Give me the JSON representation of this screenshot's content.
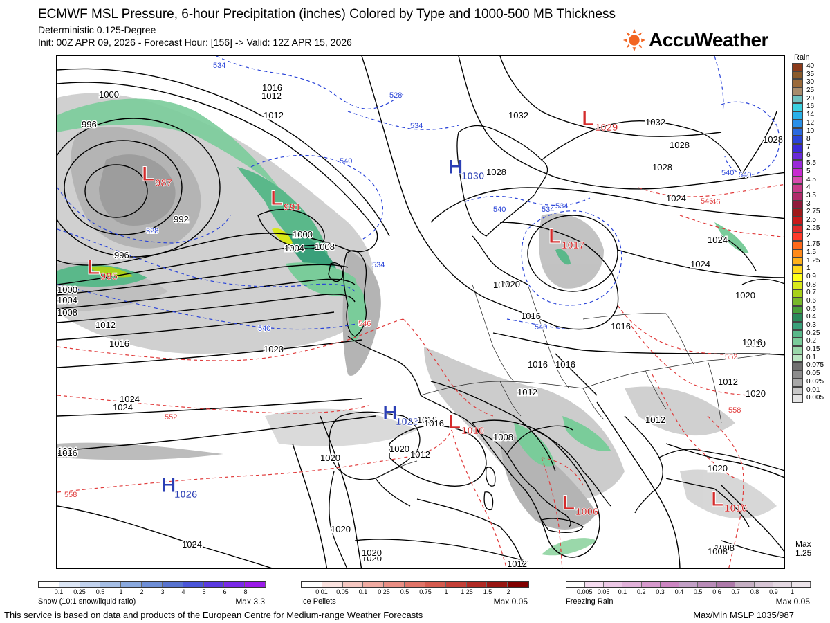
{
  "header": {
    "title": "ECMWF MSL Pressure, 6-hour Precipitation (inches) Colored by Type and 1000-500 MB Thickness",
    "subtitle": "Deterministic 0.125-Degree",
    "init_line": "Init: 00Z APR 09, 2026 - Forecast Hour: [156] -> Valid: 12Z APR 15, 2026"
  },
  "logo": {
    "text": "AccuWeather",
    "icon": "sun-icon",
    "color": "#f26522"
  },
  "map": {
    "pressure_centers": [
      {
        "type": "L",
        "value": "987",
        "color": "#d42b2b"
      },
      {
        "type": "L",
        "value": "991",
        "color": "#d42b2b"
      },
      {
        "type": "L",
        "value": "995",
        "color": "#d42b2b"
      },
      {
        "type": "L",
        "value": "1029",
        "color": "#d42b2b"
      },
      {
        "type": "L",
        "value": "1017",
        "color": "#d42b2b"
      },
      {
        "type": "L",
        "value": "1010",
        "color": "#d42b2b"
      },
      {
        "type": "L",
        "value": "1006",
        "color": "#d42b2b"
      },
      {
        "type": "L",
        "value": "1010",
        "color": "#d42b2b"
      },
      {
        "type": "H",
        "value": "1030",
        "color": "#2b3fb5"
      },
      {
        "type": "H",
        "value": "1023",
        "color": "#2b3fb5"
      },
      {
        "type": "H",
        "value": "1026",
        "color": "#2b3fb5"
      }
    ],
    "isobar_labels": [
      "1000",
      "996",
      "1012",
      "1016",
      "992",
      "1000",
      "1004",
      "1008",
      "996",
      "1000",
      "1004",
      "1008",
      "1012",
      "1016",
      "1020",
      "1024",
      "1024",
      "1020",
      "1016",
      "1012",
      "1020",
      "1024",
      "1016",
      "1016",
      "1016",
      "1012",
      "1016",
      "1020",
      "1020",
      "1024",
      "1028",
      "1032",
      "1032",
      "1028",
      "1020",
      "1012",
      "1008",
      "1020",
      "1028",
      "1020",
      "1016",
      "1020",
      "1016",
      "1012",
      "1012",
      "1008",
      "1016",
      "1012",
      "1008",
      "1020",
      "1028",
      "1024",
      "1024",
      "1020",
      "1020",
      "1024"
    ],
    "thickness_labels": [
      "534",
      "528",
      "534",
      "540",
      "528",
      "534",
      "540",
      "546",
      "540",
      "540",
      "534",
      "546",
      "540",
      "552",
      "552",
      "558",
      "558",
      "546",
      "534",
      "540"
    ]
  },
  "rain_scale": {
    "title": "Rain",
    "levels": [
      "40",
      "35",
      "30",
      "25",
      "20",
      "16",
      "14",
      "12",
      "10",
      "8",
      "7",
      "6",
      "5.5",
      "5",
      "4.5",
      "4",
      "3.5",
      "3",
      "2.75",
      "2.5",
      "2.25",
      "2",
      "1.75",
      "1.5",
      "1.25",
      "1",
      "0.9",
      "0.8",
      "0.7",
      "0.6",
      "0.5",
      "0.4",
      "0.3",
      "0.25",
      "0.2",
      "0.15",
      "0.1",
      "0.075",
      "0.05",
      "0.025",
      "0.01",
      "0.005"
    ],
    "colors": [
      "#8b3a1a",
      "#8a5a2a",
      "#9a6a3a",
      "#a88c6c",
      "#6fc2c2",
      "#3ad0e0",
      "#2ab0e8",
      "#2a90e8",
      "#2a6ae0",
      "#2a44d8",
      "#3a2ad8",
      "#6a2ad8",
      "#9a2ad8",
      "#c82ad0",
      "#d84ab0",
      "#c83a8a",
      "#b02a6a",
      "#901a3a",
      "#a01a1a",
      "#c81a1a",
      "#e02a2a",
      "#ff3a2a",
      "#ff6a1a",
      "#ff8a1a",
      "#ffb01a",
      "#ffd81a",
      "#ffff1a",
      "#d8e81a",
      "#a8d01a",
      "#78b82a",
      "#48a03a",
      "#2a8a5a",
      "#3aa07a",
      "#5ab88a",
      "#7acc9a",
      "#9ad8aa",
      "#bae6c2",
      "#707070",
      "#8c8c8c",
      "#a8a8a8",
      "#c8c8c8",
      "#e4e4e4"
    ],
    "max_label": "Max",
    "max_value": "1.25"
  },
  "legends": {
    "snow": {
      "ticks": [
        "0.1",
        "0.25",
        "0.5",
        "1",
        "2",
        "3",
        "4",
        "5",
        "6",
        "8"
      ],
      "name": "Snow (10:1 snow/liquid ratio)",
      "max": "Max 3.3",
      "colors": [
        "#ffffff",
        "#dce6f5",
        "#c3d3ee",
        "#a6bfe6",
        "#8aa9de",
        "#6e8ed6",
        "#5873cf",
        "#4a55d8",
        "#5a3ae0",
        "#7a2ae8",
        "#9a1ae8"
      ]
    },
    "ice": {
      "ticks": [
        "0.01",
        "0.05",
        "0.1",
        "0.25",
        "0.5",
        "0.75",
        "1",
        "1.25",
        "1.5",
        "2"
      ],
      "name": "Ice Pellets",
      "max": "Max 0.05",
      "colors": [
        "#ffffff",
        "#fbe3e0",
        "#f6c8c2",
        "#f0aba2",
        "#e98e84",
        "#e07468",
        "#d45a4e",
        "#c44038",
        "#b02a24",
        "#981612",
        "#800000"
      ]
    },
    "fzra": {
      "ticks": [
        "0.005",
        "0.05",
        "0.1",
        "0.2",
        "0.3",
        "0.4",
        "0.5",
        "0.6",
        "0.7",
        "0.8",
        "0.9",
        "1"
      ],
      "name": "Freezing Rain",
      "max": "Max 0.05",
      "colors": [
        "#ffffff",
        "#f5dcf0",
        "#ecc8e6",
        "#e2b2da",
        "#d79ace",
        "#cc86c2",
        "#c2a0c6",
        "#b98cb8",
        "#ae7aaa",
        "#c6b0c4",
        "#d8c6d6",
        "#e4d8e2",
        "#ece4ea"
      ]
    }
  },
  "footer": {
    "left": "This service is based on data and products of the European Centre for Medium-range Weather Forecasts",
    "right": "Max/Min MSLP 1035/987"
  }
}
